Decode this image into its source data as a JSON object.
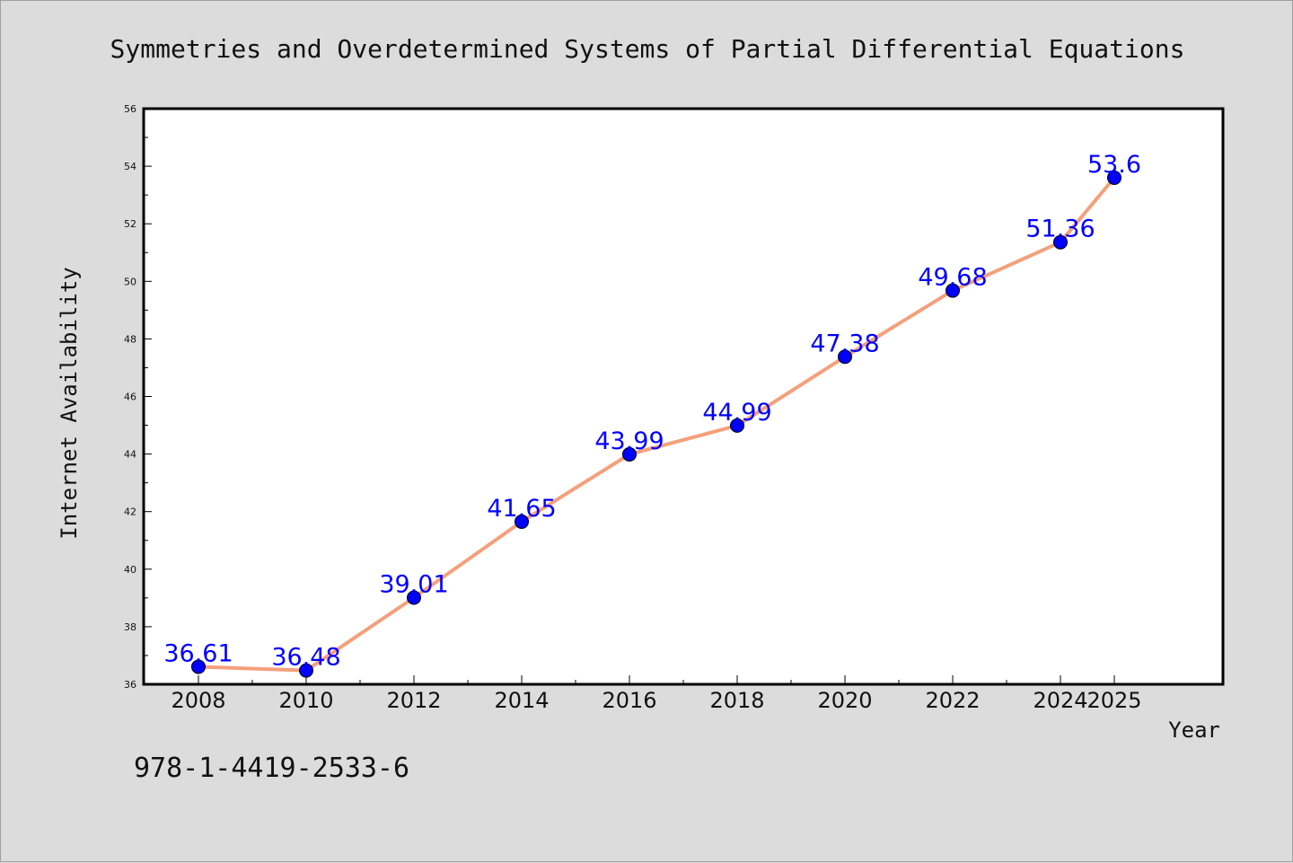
{
  "chart_data": {
    "type": "line",
    "title": "Symmetries and Overdetermined Systems of Partial Differential Equations",
    "xlabel": "Year",
    "ylabel": "Internet Availability",
    "x": [
      "2008",
      "2010",
      "2012",
      "2014",
      "2016",
      "2018",
      "2020",
      "2022",
      "2024",
      "2025"
    ],
    "series": [
      {
        "values": [
          36.61,
          36.48,
          39.01,
          41.65,
          43.99,
          44.99,
          47.38,
          49.68,
          51.36,
          53.6
        ]
      }
    ],
    "data_labels": [
      "36.61",
      "36.48",
      "39.01",
      "41.65",
      "43.99",
      "44.99",
      "47.38",
      "49.68",
      "51.36",
      "53.6"
    ],
    "ylim": [
      36,
      56
    ],
    "yticks": [
      "36",
      "38",
      "40",
      "42",
      "44",
      "46",
      "48",
      "50",
      "52",
      "54",
      "56"
    ],
    "grid": false,
    "legend": "none",
    "colors": {
      "line": "#f4a07c",
      "marker": "#0000ff",
      "labels": "#0000ff",
      "background": "#dcdcdc",
      "plot_area": "#ffffff"
    }
  },
  "footer": {
    "isbn": "978-1-4419-2533-6"
  }
}
